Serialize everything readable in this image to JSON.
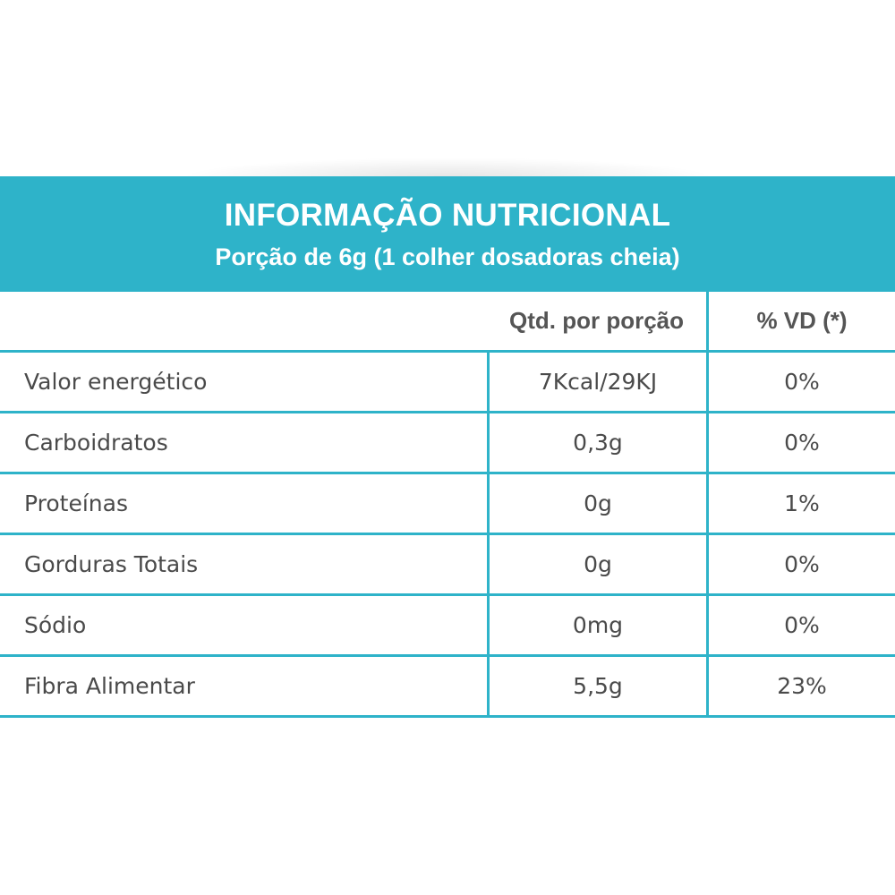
{
  "header": {
    "title": "INFORMAÇÃO NUTRICIONAL",
    "subtitle": "Porção de 6g (1  colher dosadoras cheia)"
  },
  "columns": {
    "name": "",
    "qty": "Qtd. por porção",
    "vd": "% VD (*)"
  },
  "rows": [
    {
      "name": "Valor energético",
      "qty": "7Kcal/29KJ",
      "vd": "0%"
    },
    {
      "name": "Carboidratos",
      "qty": "0,3g",
      "vd": "0%"
    },
    {
      "name": "Proteínas",
      "qty": "0g",
      "vd": "1%"
    },
    {
      "name": "Gorduras Totais",
      "qty": "0g",
      "vd": "0%"
    },
    {
      "name": "Sódio",
      "qty": "0mg",
      "vd": "0%"
    },
    {
      "name": "Fibra Alimentar",
      "qty": "5,5g",
      "vd": "23%"
    }
  ],
  "colors": {
    "accent": "#2eb3c9",
    "text": "#4a4a4a",
    "header_text": "#ffffff"
  }
}
